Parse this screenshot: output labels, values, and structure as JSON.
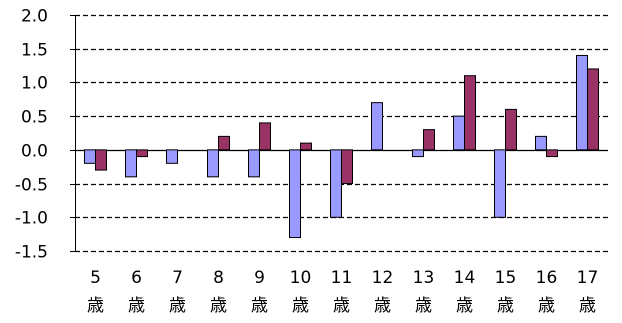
{
  "chart_data": {
    "type": "bar",
    "categories": [
      "5\n歳",
      "6\n歳",
      "7\n歳",
      "8\n歳",
      "9\n歳",
      "10\n歳",
      "11\n歳",
      "12\n歳",
      "13\n歳",
      "14\n歳",
      "15\n歳",
      "16\n歳",
      "17\n歳"
    ],
    "series": [
      {
        "values": [
          -0.2,
          -0.4,
          -0.2,
          -0.4,
          -0.4,
          -1.3,
          -1.0,
          0.7,
          -0.1,
          0.5,
          -1.0,
          0.2,
          1.4
        ]
      },
      {
        "values": [
          -0.3,
          -0.1,
          0.0,
          0.2,
          0.4,
          0.1,
          -0.5,
          0.0,
          0.3,
          1.1,
          0.6,
          -0.1,
          1.2
        ]
      }
    ],
    "ylim": [
      -1.5,
      2.0
    ],
    "yticks": [
      "2.0",
      "1.5",
      "1.0",
      "0.5",
      "0.0",
      "-0.5",
      "-1.0",
      "-1.5"
    ],
    "ytick_values": [
      2.0,
      1.5,
      1.0,
      0.5,
      0.0,
      -0.5,
      -1.0,
      -1.5
    ],
    "grid": "dashed-horizontal",
    "legend": "none",
    "title": "",
    "xlabel": "",
    "ylabel": ""
  },
  "colors": {
    "series1_fill": "#9999ff",
    "series2_fill": "#993366",
    "bar_stroke": "#000000",
    "grid": "#000000",
    "axis": "#000000"
  }
}
